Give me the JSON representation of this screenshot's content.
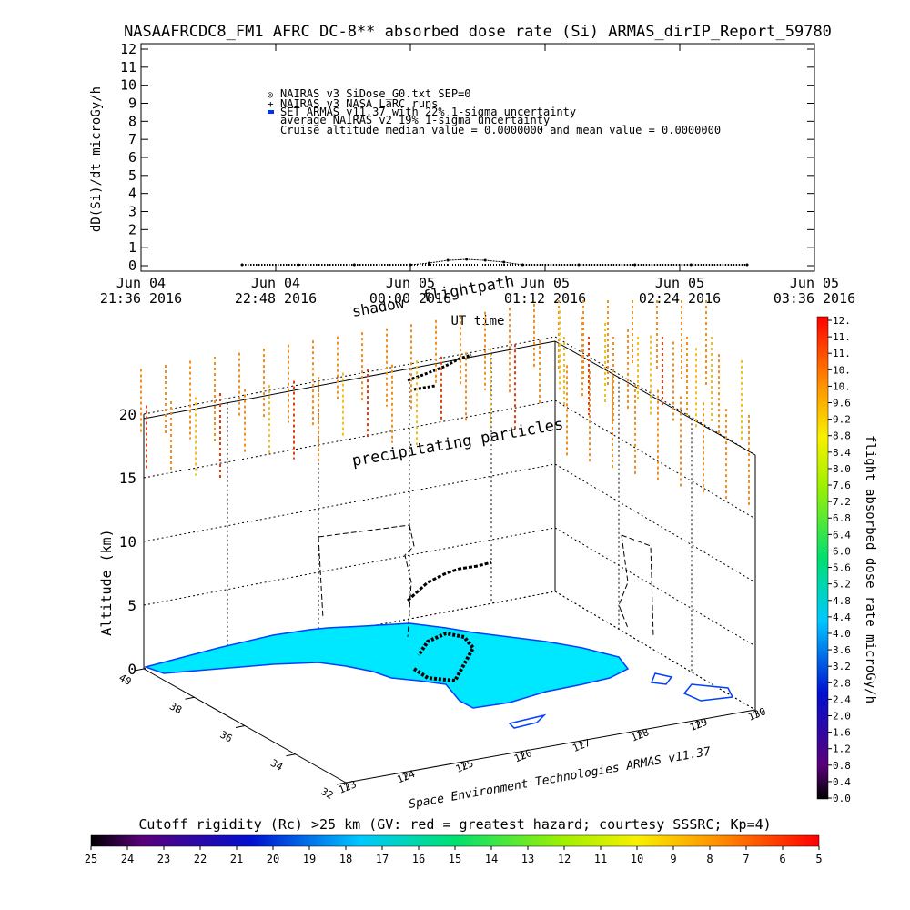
{
  "title": "NASAAFRCDC8_FM1 AFRC DC-8** absorbed dose rate (Si) ARMAS_dirIP_Report_59780",
  "top_chart": {
    "ylabel": "dD(Si)/dt microGy/h",
    "xlabel": "UT time",
    "yticks": [
      "0",
      "1",
      "2",
      "3",
      "4",
      "5",
      "6",
      "7",
      "8",
      "9",
      "10",
      "11",
      "12"
    ],
    "xticks": [
      {
        "l1": "Jun 04",
        "l2": "21:36 2016"
      },
      {
        "l1": "Jun 04",
        "l2": "22:48 2016"
      },
      {
        "l1": "Jun 05",
        "l2": "00:00 2016"
      },
      {
        "l1": "Jun 05",
        "l2": "01:12 2016"
      },
      {
        "l1": "Jun 05",
        "l2": "02:24 2016"
      },
      {
        "l1": "Jun 05",
        "l2": "03:36 2016"
      }
    ],
    "legend": [
      "NAIRAS v3 SiDose_G0.txt SEP=0",
      "NAIRAS v3 NASA LaRC runs",
      "SET ARMAS v11.37 with 22% 1-sigma uncertainty",
      "average NAIRAS v2 19% 1-sigma uncertainty",
      "Cruise altitude median value = 0.0000000 and mean value = 0.0000000"
    ]
  },
  "annotations": {
    "shadow": "shadow",
    "flightpath": "flightpath",
    "precipitating": "precipitating particles",
    "credit": "Space Environment Technologies ARMAS v11.37"
  },
  "plot3d": {
    "zlabel": "Altitude (km)",
    "zticks": [
      "0",
      "5",
      "10",
      "15",
      "20"
    ],
    "lat_ticks": [
      "32",
      "34",
      "36",
      "38",
      "40"
    ],
    "lon_ticks": [
      "123",
      "124",
      "125",
      "126",
      "127",
      "128",
      "129",
      "130"
    ]
  },
  "right_colorbar": {
    "label": "flight absorbed dose rate microGy/h",
    "ticks": [
      "0.0",
      "0.4",
      "0.8",
      "1.2",
      "1.6",
      "2.0",
      "2.4",
      "2.8",
      "3.2",
      "3.6",
      "4.0",
      "4.4",
      "4.8",
      "5.2",
      "5.6",
      "6.0",
      "6.4",
      "6.8",
      "7.2",
      "7.6",
      "8.0",
      "8.4",
      "8.8",
      "9.2",
      "9.6",
      "10.",
      "10.",
      "11.",
      "11.",
      "12."
    ]
  },
  "bottom_colorbar": {
    "label": "Cutoff rigidity (Rc) >25 km (GV: red = greatest hazard; courtesy SSSRC; Kp=4)",
    "ticks": [
      "25",
      "24",
      "23",
      "22",
      "21",
      "20",
      "19",
      "18",
      "17",
      "16",
      "15",
      "14",
      "13",
      "12",
      "11",
      "10",
      "9",
      "8",
      "7",
      "6",
      "5"
    ]
  },
  "colors": {
    "land": "#00e8ff",
    "coast": "#0040ff",
    "warm_high": "#e04010",
    "warm_mid": "#f09020",
    "warm_low": "#f0c020"
  },
  "chart_data": {
    "type": "line",
    "title": "NASAAFRCDC8_FM1 AFRC DC-8** absorbed dose rate (Si) ARMAS_dirIP_Report_59780",
    "xlabel": "UT time",
    "ylabel": "dD(Si)/dt microGy/h",
    "ylim": [
      0,
      12
    ],
    "x": [
      "Jun 04 22:30",
      "Jun 04 23:00",
      "Jun 04 23:30",
      "Jun 05 00:00",
      "Jun 05 00:10",
      "Jun 05 00:20",
      "Jun 05 00:30",
      "Jun 05 00:40",
      "Jun 05 00:50",
      "Jun 05 01:00",
      "Jun 05 01:30",
      "Jun 05 02:00",
      "Jun 05 02:30",
      "Jun 05 03:00"
    ],
    "series": [
      {
        "name": "NAIRAS v3 SiDose_G0.txt SEP=0",
        "values": [
          0.05,
          0.05,
          0.05,
          0.05,
          0.15,
          0.3,
          0.35,
          0.3,
          0.2,
          0.05,
          0.05,
          0.05,
          0.05,
          0.05
        ]
      },
      {
        "name": "NAIRAS v3 NASA LaRC runs",
        "values": [
          0.05,
          0.05,
          0.05,
          0.05,
          0.05,
          0.05,
          0.05,
          0.05,
          0.05,
          0.05,
          0.05,
          0.05,
          0.05,
          0.05
        ]
      }
    ]
  }
}
